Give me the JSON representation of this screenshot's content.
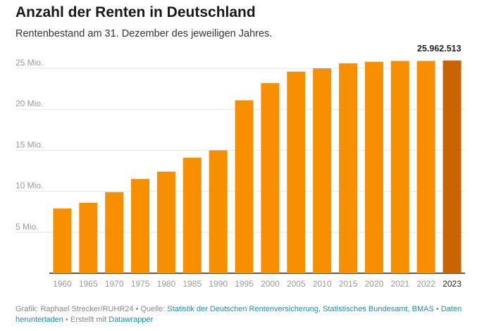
{
  "title": "Anzahl der Renten in Deutschland",
  "subtitle": "Rentenbestand am 31. Dezember des jeweiligen Jahres.",
  "colors": {
    "bar": "#f78f00",
    "highlight": "#c96400",
    "grid": "#e6e6e6",
    "axis": "#222222",
    "link": "#1a8fb5"
  },
  "chart_data": {
    "type": "bar",
    "categories": [
      "1960",
      "1965",
      "1970",
      "1975",
      "1980",
      "1985",
      "1990",
      "1995",
      "2000",
      "2005",
      "2010",
      "2015",
      "2020",
      "2021",
      "2022",
      "2023"
    ],
    "values": [
      7.9,
      8.6,
      9.9,
      11.5,
      12.4,
      14.1,
      15.0,
      21.1,
      23.2,
      24.6,
      25.0,
      25.6,
      25.8,
      25.9,
      25.9,
      25.96
    ],
    "unit": "Mio.",
    "ylim": [
      0,
      27.5
    ],
    "yticks": [
      5,
      10,
      15,
      20,
      25
    ],
    "ytick_labels": [
      "5 Mio.",
      "10 Mio.",
      "15 Mio.",
      "20 Mio.",
      "25 Mio."
    ],
    "highlight_index": 15,
    "annotation": {
      "index": 15,
      "text": "25.962.513"
    },
    "grid": true
  },
  "footer": {
    "prefix": "Grafik: Raphael Strecker/RUHR24 • Quelle: ",
    "sources": "Statistik der Deutschen Rentenversicherung, Statistisches Bundesamt, BMAS",
    "sep1": " • ",
    "download": "Daten herunterladen",
    "sep2": " • Erstellt mit ",
    "tool": "Datawrapper"
  }
}
